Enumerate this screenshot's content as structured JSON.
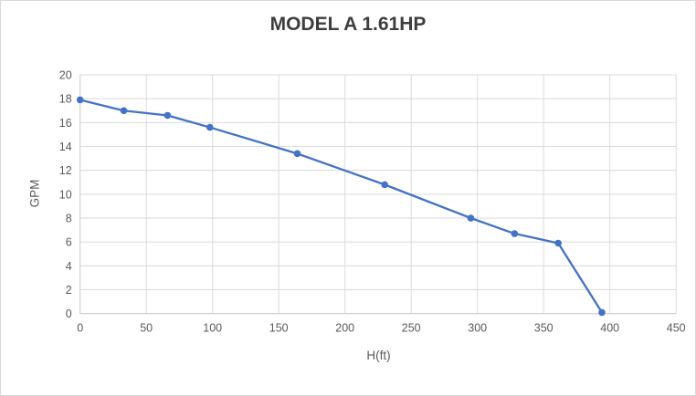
{
  "window": {
    "background": "#ffffff",
    "border_color": "#d9d9d9"
  },
  "chart_data": {
    "type": "line",
    "title": "MODEL A 1.61HP",
    "xlabel": "H(ft)",
    "ylabel": "GPM",
    "xlim": [
      0,
      450
    ],
    "ylim": [
      0,
      20
    ],
    "x_ticks": [
      0,
      50,
      100,
      150,
      200,
      250,
      300,
      350,
      400,
      450
    ],
    "y_ticks": [
      0,
      2,
      4,
      6,
      8,
      10,
      12,
      14,
      16,
      18,
      20
    ],
    "grid": "both",
    "legend": "none",
    "series": [
      {
        "name": "MODEL A 1.61HP",
        "x": [
          0,
          33,
          66,
          98,
          164,
          230,
          295,
          328,
          361,
          394
        ],
        "y": [
          17.9,
          17.0,
          16.6,
          15.6,
          13.4,
          10.8,
          8.0,
          6.7,
          5.9,
          0.1
        ],
        "color": "#4472C4",
        "marker": "circle"
      }
    ],
    "styles": {
      "title_color": "#3d3d3d",
      "axis_text_color": "#595959",
      "gridline_color": "#dadada",
      "axis_line_color": "#c6c6c6"
    }
  }
}
